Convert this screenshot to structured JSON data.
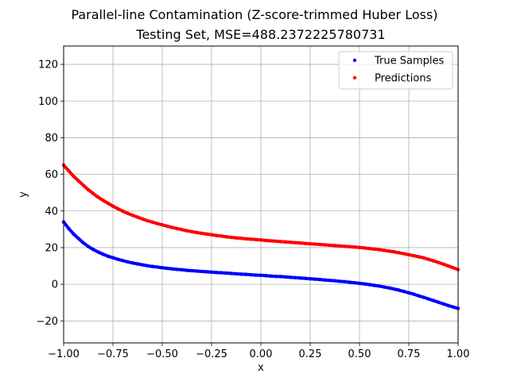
{
  "chart_data": {
    "type": "scatter",
    "title": "Parallel-line Contamination (Z-score-trimmed Huber Loss)",
    "subtitle": "Testing Set, MSE=488.2372225780731",
    "xlabel": "x",
    "ylabel": "y",
    "xlim": [
      -1.0,
      1.0
    ],
    "ylim": [
      -32,
      130
    ],
    "xticks": [
      "−1.00",
      "−0.75",
      "−0.50",
      "−0.25",
      "0.00",
      "0.25",
      "0.50",
      "0.75",
      "1.00"
    ],
    "xtick_values": [
      -1.0,
      -0.75,
      -0.5,
      -0.25,
      0.0,
      0.25,
      0.5,
      0.75,
      1.0
    ],
    "yticks": [
      "−20",
      "0",
      "20",
      "40",
      "60",
      "80",
      "100",
      "120"
    ],
    "ytick_values": [
      -20,
      0,
      20,
      40,
      60,
      80,
      100,
      120
    ],
    "grid": true,
    "legend_position": "top-right",
    "series": [
      {
        "name": "True Samples",
        "color": "#0000ff",
        "x": [
          -1.0,
          -0.975,
          -0.95,
          -0.925,
          -0.9,
          -0.875,
          -0.85,
          -0.825,
          -0.8,
          -0.775,
          -0.75,
          -0.725,
          -0.7,
          -0.675,
          -0.65,
          -0.625,
          -0.6,
          -0.575,
          -0.55,
          -0.525,
          -0.5,
          -0.475,
          -0.45,
          -0.425,
          -0.4,
          -0.375,
          -0.35,
          -0.325,
          -0.3,
          -0.275,
          -0.25,
          -0.225,
          -0.2,
          -0.175,
          -0.15,
          -0.125,
          -0.1,
          -0.075,
          -0.05,
          -0.025,
          0.0,
          0.025,
          0.05,
          0.075,
          0.1,
          0.125,
          0.15,
          0.175,
          0.2,
          0.225,
          0.25,
          0.275,
          0.3,
          0.325,
          0.35,
          0.375,
          0.4,
          0.425,
          0.45,
          0.475,
          0.5,
          0.525,
          0.55,
          0.575,
          0.6,
          0.625,
          0.65,
          0.675,
          0.7,
          0.725,
          0.75,
          0.775,
          0.8,
          0.825,
          0.85,
          0.875,
          0.9,
          0.925,
          0.95,
          0.975,
          1.0
        ],
        "y": [
          34.0,
          30.5,
          27.5,
          25.0,
          22.6,
          20.6,
          19.0,
          17.6,
          16.4,
          15.3,
          14.5,
          13.6,
          12.9,
          12.2,
          11.6,
          11.1,
          10.6,
          10.1,
          9.7,
          9.4,
          9.0,
          8.7,
          8.4,
          8.1,
          7.9,
          7.6,
          7.4,
          7.2,
          7.0,
          6.8,
          6.6,
          6.4,
          6.3,
          6.1,
          5.9,
          5.7,
          5.5,
          5.4,
          5.2,
          5.0,
          4.9,
          4.7,
          4.5,
          4.3,
          4.2,
          4.0,
          3.8,
          3.6,
          3.4,
          3.2,
          3.0,
          2.8,
          2.6,
          2.3,
          2.1,
          1.9,
          1.6,
          1.4,
          1.1,
          0.8,
          0.5,
          0.2,
          -0.2,
          -0.6,
          -1.0,
          -1.5,
          -2.0,
          -2.6,
          -3.2,
          -3.9,
          -4.7,
          -5.4,
          -6.3,
          -7.1,
          -8.0,
          -8.9,
          -9.8,
          -10.7,
          -11.6,
          -12.4,
          -13.2
        ]
      },
      {
        "name": "Predictions",
        "color": "#ff0000",
        "x": [
          -1.0,
          -0.975,
          -0.95,
          -0.925,
          -0.9,
          -0.875,
          -0.85,
          -0.825,
          -0.8,
          -0.775,
          -0.75,
          -0.725,
          -0.7,
          -0.675,
          -0.65,
          -0.625,
          -0.6,
          -0.575,
          -0.55,
          -0.525,
          -0.5,
          -0.475,
          -0.45,
          -0.425,
          -0.4,
          -0.375,
          -0.35,
          -0.325,
          -0.3,
          -0.275,
          -0.25,
          -0.225,
          -0.2,
          -0.175,
          -0.15,
          -0.125,
          -0.1,
          -0.075,
          -0.05,
          -0.025,
          0.0,
          0.025,
          0.05,
          0.075,
          0.1,
          0.125,
          0.15,
          0.175,
          0.2,
          0.225,
          0.25,
          0.275,
          0.3,
          0.325,
          0.35,
          0.375,
          0.4,
          0.425,
          0.45,
          0.475,
          0.5,
          0.525,
          0.55,
          0.575,
          0.6,
          0.625,
          0.65,
          0.675,
          0.7,
          0.725,
          0.75,
          0.775,
          0.8,
          0.825,
          0.85,
          0.875,
          0.9,
          0.925,
          0.95,
          0.975,
          1.0
        ],
        "y": [
          65.0,
          62.0,
          59.0,
          56.5,
          54.0,
          51.6,
          49.5,
          47.5,
          45.8,
          44.2,
          42.6,
          41.2,
          39.9,
          38.7,
          37.6,
          36.6,
          35.6,
          34.7,
          33.9,
          33.1,
          32.4,
          31.7,
          31.0,
          30.4,
          29.8,
          29.2,
          28.7,
          28.2,
          27.8,
          27.4,
          27.0,
          26.6,
          26.3,
          25.9,
          25.6,
          25.3,
          25.1,
          24.8,
          24.6,
          24.4,
          24.2,
          23.9,
          23.7,
          23.5,
          23.3,
          23.1,
          22.9,
          22.7,
          22.5,
          22.3,
          22.1,
          21.9,
          21.7,
          21.5,
          21.3,
          21.1,
          20.9,
          20.7,
          20.5,
          20.3,
          20.1,
          19.8,
          19.5,
          19.2,
          18.9,
          18.5,
          18.1,
          17.7,
          17.2,
          16.7,
          16.1,
          15.6,
          15.0,
          14.4,
          13.6,
          12.8,
          11.9,
          11.0,
          10.0,
          9.0,
          8.0
        ]
      }
    ]
  }
}
